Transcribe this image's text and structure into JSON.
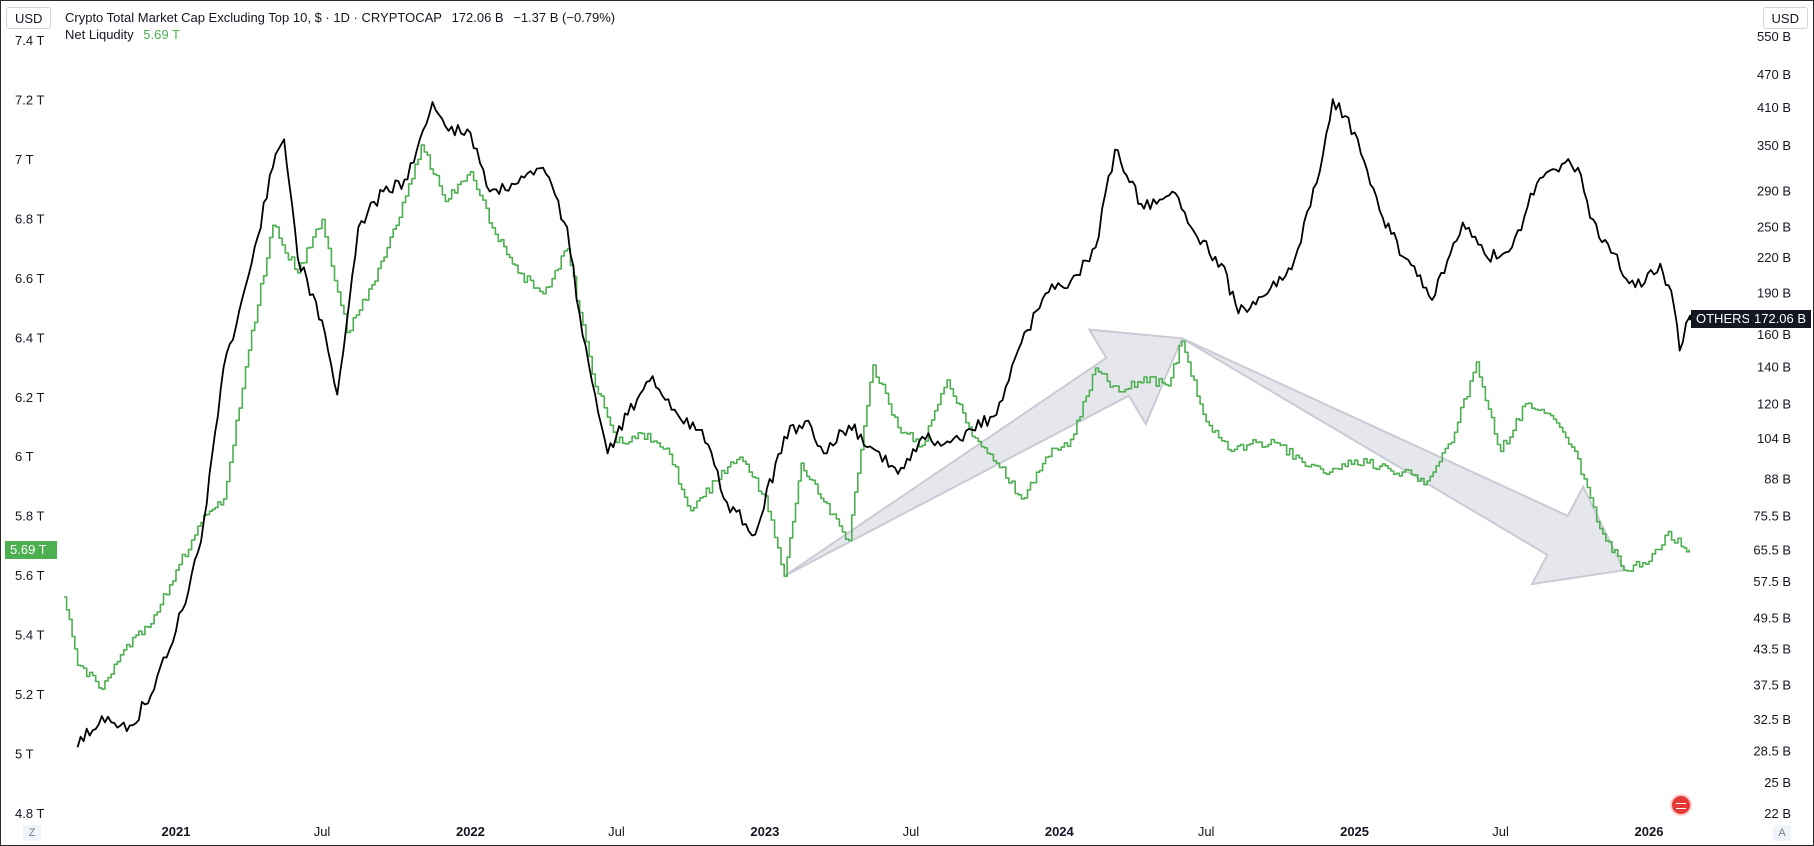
{
  "header": {
    "currency_left": "USD",
    "currency_right": "USD",
    "main_title": "Crypto Total Market Cap Excluding Top 10, $ · 1D · CRYPTOCAP",
    "main_value": "172.06 B",
    "main_change": "−1.37 B (−0.79%)",
    "secondary_title": "Net Liqudity",
    "secondary_value": "5.69 T"
  },
  "tags": {
    "left_value": "5.69 T",
    "others_label": "OTHERS",
    "others_value": "172.06 B"
  },
  "controls": {
    "zoom_label": "Z",
    "auto_label": "A"
  },
  "colors": {
    "net_liquidity": "#4caf50",
    "others": "#000000",
    "arrow_fill": "#d1d4dc",
    "tag_green": "#4caf50",
    "tag_dark": "#131722"
  },
  "chart_data": {
    "type": "line",
    "x_ticks": [
      {
        "label": "2021",
        "date": "2021-01-01",
        "bold": true
      },
      {
        "label": "Jul",
        "date": "2021-07-01",
        "bold": false
      },
      {
        "label": "2022",
        "date": "2022-01-01",
        "bold": true
      },
      {
        "label": "Jul",
        "date": "2022-07-01",
        "bold": false
      },
      {
        "label": "2023",
        "date": "2023-01-01",
        "bold": true
      },
      {
        "label": "Jul",
        "date": "2023-07-01",
        "bold": false
      },
      {
        "label": "2024",
        "date": "2024-01-01",
        "bold": true
      },
      {
        "label": "Jul",
        "date": "2024-07-01",
        "bold": false
      },
      {
        "label": "2025",
        "date": "2025-01-01",
        "bold": true
      },
      {
        "label": "Jul",
        "date": "2025-07-01",
        "bold": false
      },
      {
        "label": "2026",
        "date": "2026-01-01",
        "bold": true
      }
    ],
    "left_axis": {
      "unit": "T",
      "range": [
        4.8,
        7.4
      ],
      "ticks": [
        "7.4 T",
        "7.2 T",
        "7 T",
        "6.8 T",
        "6.6 T",
        "6.4 T",
        "6.2 T",
        "6 T",
        "5.8 T",
        "5.6 T",
        "5.4 T",
        "5.2 T",
        "5 T",
        "4.8 T"
      ],
      "tick_values": [
        7.4,
        7.2,
        7.0,
        6.8,
        6.6,
        6.4,
        6.2,
        6.0,
        5.8,
        5.6,
        5.4,
        5.2,
        5.0,
        4.8
      ]
    },
    "right_axis": {
      "unit": "B",
      "scale": "log",
      "range": [
        22,
        550
      ],
      "ticks": [
        "550 B",
        "470 B",
        "410 B",
        "350 B",
        "290 B",
        "250 B",
        "220 B",
        "190 B",
        "160 B",
        "140 B",
        "120 B",
        "104 B",
        "88 B",
        "75.5 B",
        "65.5 B",
        "57.5 B",
        "49.5 B",
        "43.5 B",
        "37.5 B",
        "32.5 B",
        "28.5 B",
        "25 B",
        "22 B"
      ],
      "tick_values": [
        550,
        470,
        410,
        350,
        290,
        250,
        220,
        190,
        160,
        140,
        120,
        104,
        88,
        75.5,
        65.5,
        57.5,
        49.5,
        43.5,
        37.5,
        32.5,
        28.5,
        25,
        22
      ]
    },
    "series": [
      {
        "name": "Net Liqudity",
        "axis": "left",
        "points": [
          {
            "date": "2020-08-15",
            "value": 5.53
          },
          {
            "date": "2020-09-01",
            "value": 5.3
          },
          {
            "date": "2020-10-01",
            "value": 5.22
          },
          {
            "date": "2020-11-01",
            "value": 5.37
          },
          {
            "date": "2020-12-01",
            "value": 5.44
          },
          {
            "date": "2021-01-01",
            "value": 5.62
          },
          {
            "date": "2021-02-01",
            "value": 5.78
          },
          {
            "date": "2021-03-01",
            "value": 5.86
          },
          {
            "date": "2021-04-01",
            "value": 6.36
          },
          {
            "date": "2021-05-01",
            "value": 6.78
          },
          {
            "date": "2021-06-01",
            "value": 6.62
          },
          {
            "date": "2021-07-01",
            "value": 6.8
          },
          {
            "date": "2021-08-01",
            "value": 6.42
          },
          {
            "date": "2021-09-01",
            "value": 6.58
          },
          {
            "date": "2021-10-01",
            "value": 6.78
          },
          {
            "date": "2021-11-01",
            "value": 7.05
          },
          {
            "date": "2021-12-01",
            "value": 6.86
          },
          {
            "date": "2022-01-01",
            "value": 6.96
          },
          {
            "date": "2022-02-01",
            "value": 6.75
          },
          {
            "date": "2022-03-01",
            "value": 6.62
          },
          {
            "date": "2022-04-01",
            "value": 6.55
          },
          {
            "date": "2022-05-01",
            "value": 6.7
          },
          {
            "date": "2022-06-01",
            "value": 6.28
          },
          {
            "date": "2022-07-01",
            "value": 6.05
          },
          {
            "date": "2022-08-01",
            "value": 6.08
          },
          {
            "date": "2022-09-01",
            "value": 6.03
          },
          {
            "date": "2022-10-01",
            "value": 5.82
          },
          {
            "date": "2022-11-01",
            "value": 5.92
          },
          {
            "date": "2022-12-01",
            "value": 6.0
          },
          {
            "date": "2023-01-01",
            "value": 5.87
          },
          {
            "date": "2023-01-25",
            "value": 5.6
          },
          {
            "date": "2023-02-15",
            "value": 5.98
          },
          {
            "date": "2023-03-15",
            "value": 5.85
          },
          {
            "date": "2023-04-15",
            "value": 5.72
          },
          {
            "date": "2023-05-15",
            "value": 6.31
          },
          {
            "date": "2023-06-15",
            "value": 6.1
          },
          {
            "date": "2023-07-15",
            "value": 6.04
          },
          {
            "date": "2023-08-15",
            "value": 6.26
          },
          {
            "date": "2023-09-15",
            "value": 6.07
          },
          {
            "date": "2023-10-15",
            "value": 5.98
          },
          {
            "date": "2023-11-15",
            "value": 5.86
          },
          {
            "date": "2023-12-15",
            "value": 6.0
          },
          {
            "date": "2024-01-15",
            "value": 6.06
          },
          {
            "date": "2024-02-15",
            "value": 6.3
          },
          {
            "date": "2024-03-15",
            "value": 6.22
          },
          {
            "date": "2024-04-15",
            "value": 6.27
          },
          {
            "date": "2024-05-15",
            "value": 6.24
          },
          {
            "date": "2024-06-01",
            "value": 6.39
          },
          {
            "date": "2024-07-01",
            "value": 6.12
          },
          {
            "date": "2024-08-01",
            "value": 6.02
          },
          {
            "date": "2024-09-01",
            "value": 6.05
          },
          {
            "date": "2024-10-01",
            "value": 6.04
          },
          {
            "date": "2024-11-01",
            "value": 5.97
          },
          {
            "date": "2024-12-01",
            "value": 5.95
          },
          {
            "date": "2025-01-01",
            "value": 5.99
          },
          {
            "date": "2025-02-01",
            "value": 5.97
          },
          {
            "date": "2025-03-01",
            "value": 5.95
          },
          {
            "date": "2025-04-01",
            "value": 5.92
          },
          {
            "date": "2025-05-01",
            "value": 6.05
          },
          {
            "date": "2025-06-01",
            "value": 6.32
          },
          {
            "date": "2025-07-01",
            "value": 6.02
          },
          {
            "date": "2025-08-01",
            "value": 6.18
          },
          {
            "date": "2025-09-01",
            "value": 6.14
          },
          {
            "date": "2025-10-01",
            "value": 6.02
          },
          {
            "date": "2025-11-01",
            "value": 5.76
          },
          {
            "date": "2025-12-01",
            "value": 5.62
          },
          {
            "date": "2026-01-01",
            "value": 5.65
          },
          {
            "date": "2026-01-25",
            "value": 5.75
          },
          {
            "date": "2026-02-10",
            "value": 5.7
          },
          {
            "date": "2026-02-20",
            "value": 5.69
          }
        ]
      },
      {
        "name": "OTHERS",
        "axis": "right",
        "points": [
          {
            "date": "2020-09-01",
            "value": 29
          },
          {
            "date": "2020-10-01",
            "value": 33
          },
          {
            "date": "2020-11-01",
            "value": 31
          },
          {
            "date": "2020-12-01",
            "value": 36
          },
          {
            "date": "2021-01-01",
            "value": 47
          },
          {
            "date": "2021-02-01",
            "value": 68
          },
          {
            "date": "2021-03-01",
            "value": 140
          },
          {
            "date": "2021-04-01",
            "value": 205
          },
          {
            "date": "2021-05-01",
            "value": 320
          },
          {
            "date": "2021-05-15",
            "value": 360
          },
          {
            "date": "2021-06-01",
            "value": 220
          },
          {
            "date": "2021-07-01",
            "value": 170
          },
          {
            "date": "2021-07-20",
            "value": 125
          },
          {
            "date": "2021-08-15",
            "value": 250
          },
          {
            "date": "2021-09-15",
            "value": 290
          },
          {
            "date": "2021-10-15",
            "value": 305
          },
          {
            "date": "2021-11-15",
            "value": 420
          },
          {
            "date": "2021-12-01",
            "value": 380
          },
          {
            "date": "2022-01-01",
            "value": 370
          },
          {
            "date": "2022-01-25",
            "value": 290
          },
          {
            "date": "2022-03-01",
            "value": 300
          },
          {
            "date": "2022-04-01",
            "value": 320
          },
          {
            "date": "2022-05-01",
            "value": 250
          },
          {
            "date": "2022-05-20",
            "value": 160
          },
          {
            "date": "2022-06-20",
            "value": 98
          },
          {
            "date": "2022-07-15",
            "value": 115
          },
          {
            "date": "2022-08-15",
            "value": 135
          },
          {
            "date": "2022-09-15",
            "value": 115
          },
          {
            "date": "2022-10-15",
            "value": 108
          },
          {
            "date": "2022-11-15",
            "value": 80
          },
          {
            "date": "2022-12-20",
            "value": 70
          },
          {
            "date": "2023-01-25",
            "value": 105
          },
          {
            "date": "2023-02-20",
            "value": 112
          },
          {
            "date": "2023-03-15",
            "value": 98
          },
          {
            "date": "2023-04-15",
            "value": 110
          },
          {
            "date": "2023-05-15",
            "value": 100
          },
          {
            "date": "2023-06-15",
            "value": 90
          },
          {
            "date": "2023-07-15",
            "value": 105
          },
          {
            "date": "2023-08-15",
            "value": 103
          },
          {
            "date": "2023-09-15",
            "value": 108
          },
          {
            "date": "2023-10-15",
            "value": 115
          },
          {
            "date": "2023-11-15",
            "value": 155
          },
          {
            "date": "2023-12-15",
            "value": 190
          },
          {
            "date": "2024-01-15",
            "value": 200
          },
          {
            "date": "2024-02-15",
            "value": 230
          },
          {
            "date": "2024-03-10",
            "value": 345
          },
          {
            "date": "2024-04-15",
            "value": 270
          },
          {
            "date": "2024-05-20",
            "value": 290
          },
          {
            "date": "2024-06-20",
            "value": 240
          },
          {
            "date": "2024-07-20",
            "value": 215
          },
          {
            "date": "2024-08-10",
            "value": 175
          },
          {
            "date": "2024-09-15",
            "value": 190
          },
          {
            "date": "2024-10-15",
            "value": 210
          },
          {
            "date": "2024-11-15",
            "value": 300
          },
          {
            "date": "2024-12-05",
            "value": 425
          },
          {
            "date": "2025-01-05",
            "value": 360
          },
          {
            "date": "2025-02-05",
            "value": 260
          },
          {
            "date": "2025-03-05",
            "value": 220
          },
          {
            "date": "2025-04-07",
            "value": 185
          },
          {
            "date": "2025-05-15",
            "value": 255
          },
          {
            "date": "2025-06-15",
            "value": 220
          },
          {
            "date": "2025-07-15",
            "value": 230
          },
          {
            "date": "2025-08-15",
            "value": 300
          },
          {
            "date": "2025-09-15",
            "value": 325
          },
          {
            "date": "2025-10-05",
            "value": 320
          },
          {
            "date": "2025-10-20",
            "value": 260
          },
          {
            "date": "2025-11-15",
            "value": 225
          },
          {
            "date": "2025-12-15",
            "value": 195
          },
          {
            "date": "2026-01-15",
            "value": 215
          },
          {
            "date": "2026-02-01",
            "value": 180
          },
          {
            "date": "2026-02-08",
            "value": 150
          },
          {
            "date": "2026-02-20",
            "value": 172.06
          }
        ]
      }
    ],
    "annotations": [
      {
        "type": "arrow",
        "from": {
          "date": "2023-01-25",
          "value": 5.6
        },
        "to": {
          "date": "2024-06-01",
          "value": 6.4
        },
        "axis": "left"
      },
      {
        "type": "arrow",
        "from": {
          "date": "2024-06-01",
          "value": 6.4
        },
        "to": {
          "date": "2025-12-01",
          "value": 5.62
        },
        "axis": "left"
      }
    ],
    "grid": false
  }
}
